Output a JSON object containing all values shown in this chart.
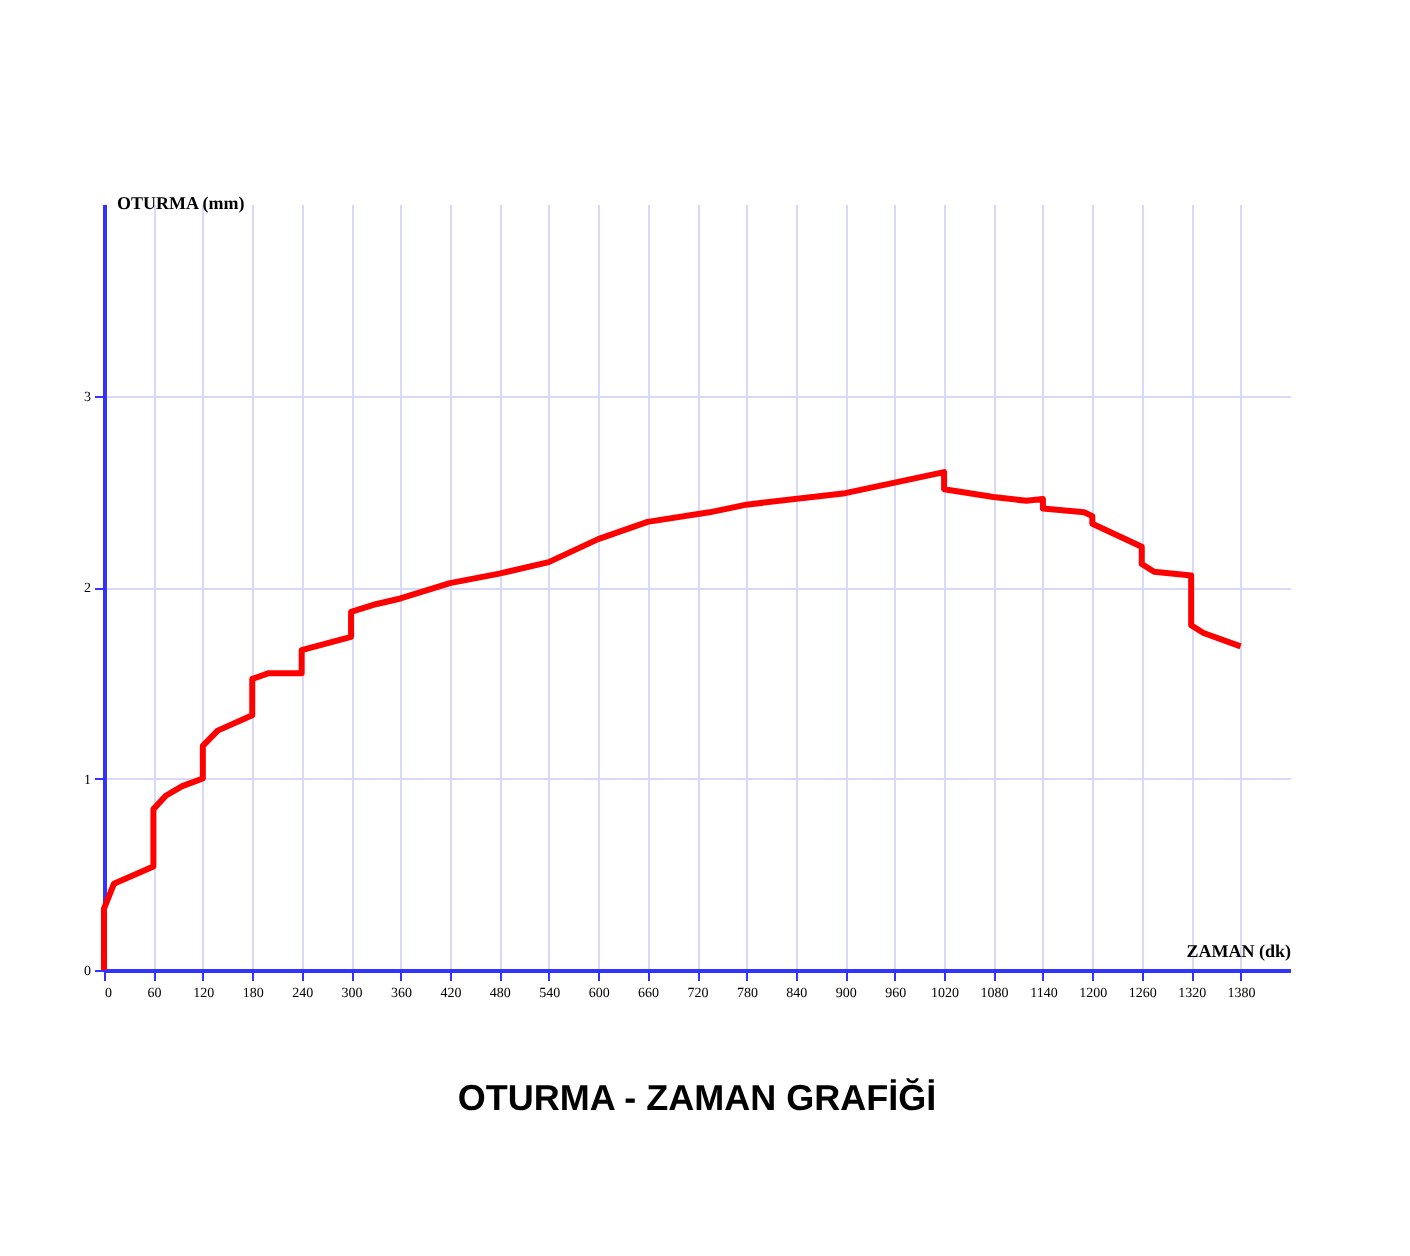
{
  "chart_data": {
    "type": "line",
    "title": "OTURMA - ZAMAN GRAFİĞİ",
    "xlabel": "ZAMAN (dk)",
    "ylabel": "OTURMA (mm)",
    "x": [
      0,
      0,
      12,
      60,
      60,
      75,
      95,
      120,
      120,
      138,
      180,
      180,
      200,
      240,
      240,
      300,
      300,
      330,
      360,
      420,
      480,
      540,
      600,
      660,
      735,
      780,
      900,
      1020,
      1020,
      1080,
      1120,
      1140,
      1140,
      1190,
      1200,
      1200,
      1260,
      1260,
      1275,
      1320,
      1320,
      1335,
      1380
    ],
    "series": [
      {
        "color": "#ff0000",
        "values": [
          0,
          0.32,
          0.45,
          0.54,
          0.84,
          0.91,
          0.96,
          1.0,
          1.17,
          1.25,
          1.33,
          1.52,
          1.55,
          1.55,
          1.67,
          1.74,
          1.87,
          1.91,
          1.94,
          2.02,
          2.07,
          2.13,
          2.25,
          2.34,
          2.39,
          2.43,
          2.49,
          2.6,
          2.51,
          2.47,
          2.45,
          2.46,
          2.41,
          2.39,
          2.37,
          2.33,
          2.21,
          2.12,
          2.08,
          2.06,
          1.8,
          1.76,
          1.69
        ]
      }
    ],
    "xlim": [
      0,
      1440
    ],
    "ylim": [
      0,
      4
    ],
    "xticks": [
      0,
      60,
      120,
      180,
      240,
      300,
      360,
      420,
      480,
      540,
      600,
      660,
      720,
      780,
      840,
      900,
      960,
      1020,
      1080,
      1140,
      1200,
      1260,
      1320,
      1380
    ],
    "yticks": [
      0,
      1,
      2,
      3
    ],
    "grid": true,
    "line_style": "solid",
    "marker": "none",
    "legend": false
  }
}
